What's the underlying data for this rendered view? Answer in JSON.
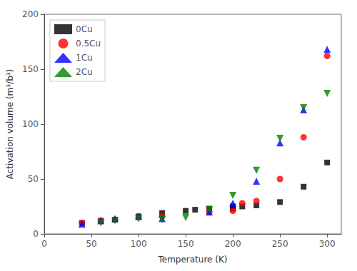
{
  "chart_data": {
    "type": "scatter",
    "title": "",
    "xlabel": "Temperature (K)",
    "ylabel": "Activation volume (m³/b³)",
    "xlim": [
      0,
      315
    ],
    "ylim": [
      0,
      200
    ],
    "xticks": [
      0,
      50,
      100,
      150,
      200,
      250,
      300
    ],
    "yticks": [
      0,
      50,
      100,
      150,
      200
    ],
    "grid": false,
    "legend": "upper left",
    "series": [
      {
        "name": "0Cu",
        "color": "#000000",
        "marker": "square",
        "x": [
          40,
          60,
          75,
          100,
          125,
          150,
          160,
          175,
          200,
          200,
          210,
          225,
          250,
          275,
          300
        ],
        "values": [
          10,
          12,
          13,
          16,
          19,
          21,
          22,
          23,
          23,
          25,
          25,
          26,
          29,
          43,
          65
        ]
      },
      {
        "name": "0.5Cu",
        "color": "#ff0000",
        "marker": "circle",
        "x": [
          40,
          60,
          75,
          100,
          125,
          175,
          200,
          210,
          225,
          250,
          275,
          300
        ],
        "values": [
          10,
          12,
          13,
          15,
          16,
          20,
          21,
          28,
          30,
          50,
          88,
          162
        ]
      },
      {
        "name": "1Cu",
        "color": "#0000ff",
        "marker": "triangle_up",
        "x": [
          40,
          60,
          75,
          100,
          125,
          175,
          200,
          225,
          250,
          275,
          300
        ],
        "values": [
          9,
          12,
          14,
          16,
          14,
          20,
          28,
          48,
          83,
          113,
          168
        ]
      },
      {
        "name": "2Cu",
        "color": "#008000",
        "marker": "triangle_down",
        "x": [
          60,
          75,
          100,
          125,
          150,
          175,
          200,
          225,
          250,
          275,
          300
        ],
        "values": [
          10,
          12,
          14,
          13,
          15,
          22,
          35,
          58,
          87,
          115,
          128
        ]
      }
    ]
  }
}
